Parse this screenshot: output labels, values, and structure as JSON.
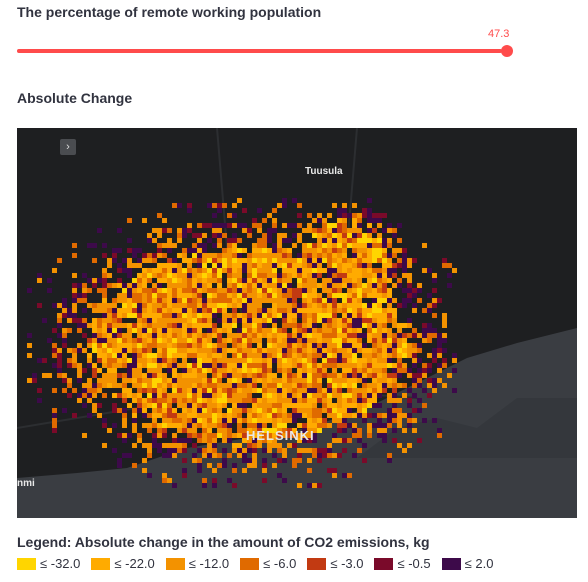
{
  "slider": {
    "label": "The percentage of remote working population",
    "value": "47.3",
    "fraction": 0.985,
    "accent": "#ff4b4b"
  },
  "section": {
    "title": "Absolute Change"
  },
  "map": {
    "toggle_icon": "chevron-right-icon",
    "toggle_glyph": "›",
    "places": [
      "Tuusula",
      "HELSINKI",
      "nmi"
    ],
    "land_color": "#1e1f21",
    "water_color": "#3a3d42"
  },
  "legend": {
    "title": "Legend: Absolute change in the amount of CO2 emissions, kg",
    "items": [
      {
        "label": "≤ -32.0",
        "color": "#ffd500"
      },
      {
        "label": "≤ -22.0",
        "color": "#ffab00"
      },
      {
        "label": "≤ -12.0",
        "color": "#f39200"
      },
      {
        "label": "≤ -6.0",
        "color": "#e06a00"
      },
      {
        "label": "≤ -3.0",
        "color": "#c23a12"
      },
      {
        "label": "≤ -0.5",
        "color": "#7a0a2a"
      },
      {
        "label": "≤ 2.0",
        "color": "#3d0a4a"
      }
    ]
  }
}
